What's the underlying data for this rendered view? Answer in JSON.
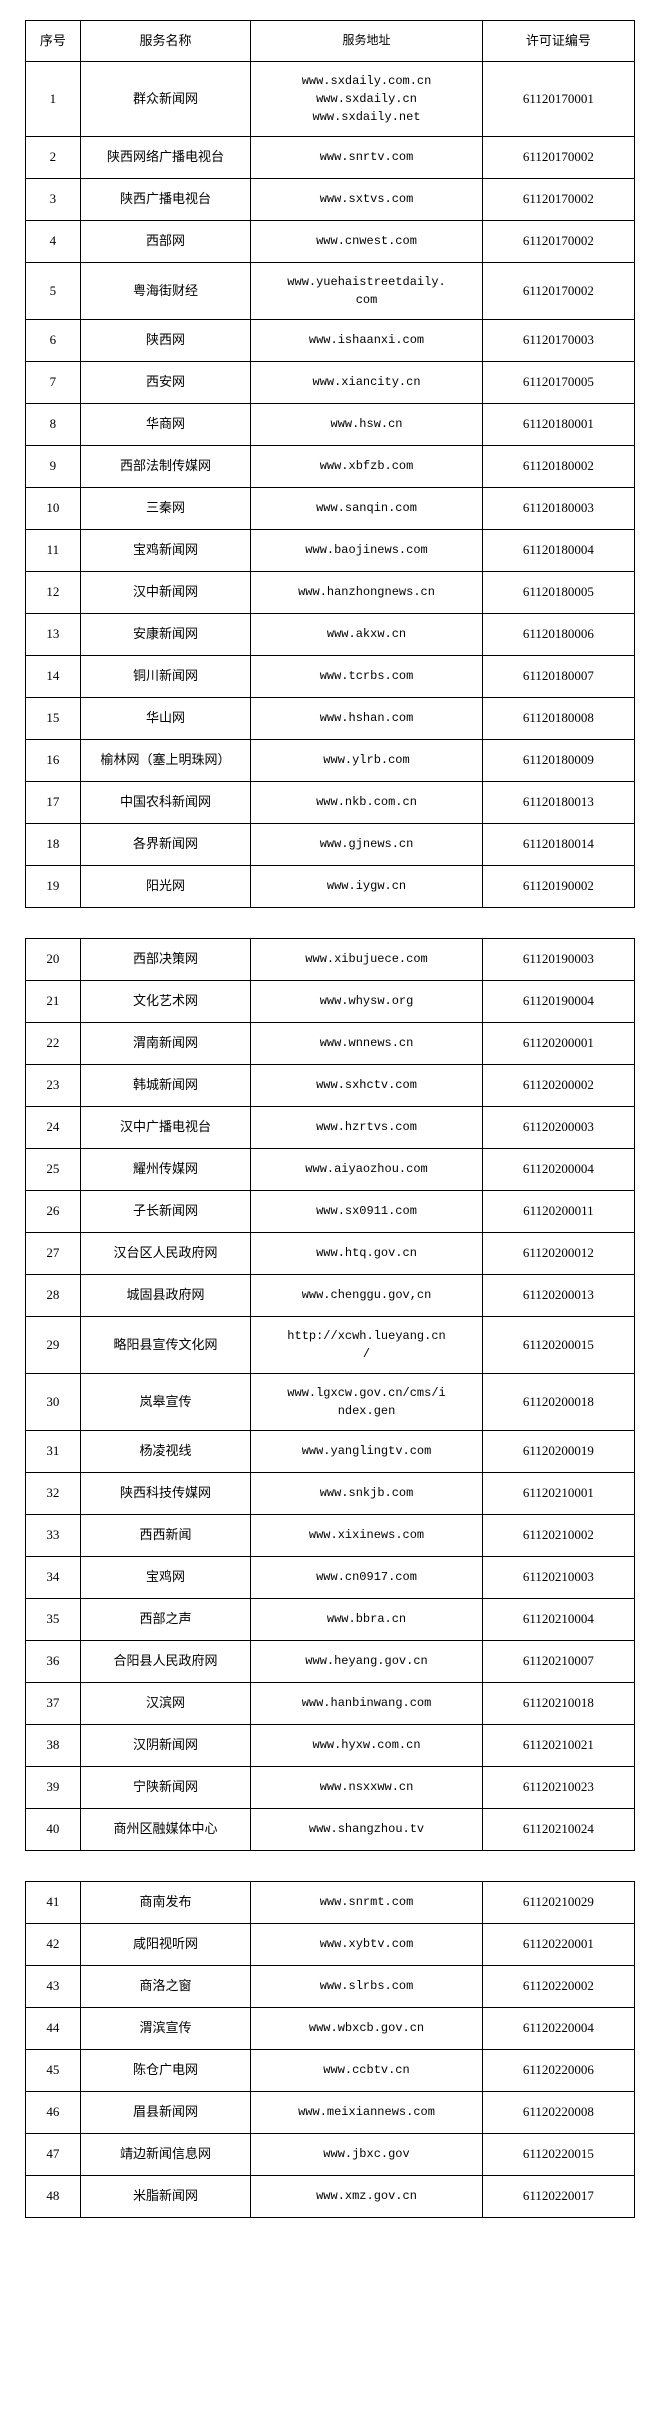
{
  "headers": {
    "seq": "序号",
    "name": "服务名称",
    "addr": "服务地址",
    "license": "许可证编号"
  },
  "groups": [
    {
      "rows": [
        {
          "seq": "1",
          "name": "群众新闻网",
          "addr": [
            "www.sxdaily.com.cn",
            "www.sxdaily.cn",
            "www.sxdaily.net"
          ],
          "license": "61120170001"
        },
        {
          "seq": "2",
          "name": "陕西网络广播电视台",
          "addr": [
            "www.snrtv.com"
          ],
          "license": "61120170002"
        },
        {
          "seq": "3",
          "name": "陕西广播电视台",
          "addr": [
            "www.sxtvs.com"
          ],
          "license": "61120170002"
        },
        {
          "seq": "4",
          "name": "西部网",
          "addr": [
            "www.cnwest.com"
          ],
          "license": "61120170002"
        },
        {
          "seq": "5",
          "name": "粤海街财经",
          "addr": [
            "www.yuehaistreetdaily.",
            "com"
          ],
          "license": "61120170002"
        },
        {
          "seq": "6",
          "name": "陕西网",
          "addr": [
            "www.ishaanxi.com"
          ],
          "license": "61120170003"
        },
        {
          "seq": "7",
          "name": "西安网",
          "addr": [
            "www.xiancity.cn"
          ],
          "license": "61120170005"
        },
        {
          "seq": "8",
          "name": "华商网",
          "addr": [
            "www.hsw.cn"
          ],
          "license": "61120180001"
        },
        {
          "seq": "9",
          "name": "西部法制传媒网",
          "addr": [
            "www.xbfzb.com"
          ],
          "license": "61120180002"
        },
        {
          "seq": "10",
          "name": "三秦网",
          "addr": [
            "www.sanqin.com"
          ],
          "license": "61120180003"
        },
        {
          "seq": "11",
          "name": "宝鸡新闻网",
          "addr": [
            "www.baojinews.com"
          ],
          "license": "61120180004"
        },
        {
          "seq": "12",
          "name": "汉中新闻网",
          "addr": [
            "www.hanzhongnews.cn"
          ],
          "license": "61120180005"
        },
        {
          "seq": "13",
          "name": "安康新闻网",
          "addr": [
            "www.akxw.cn"
          ],
          "license": "61120180006"
        },
        {
          "seq": "14",
          "name": "铜川新闻网",
          "addr": [
            "www.tcrbs.com"
          ],
          "license": "61120180007"
        },
        {
          "seq": "15",
          "name": "华山网",
          "addr": [
            "www.hshan.com"
          ],
          "license": "61120180008"
        },
        {
          "seq": "16",
          "name": "榆林网（塞上明珠网）",
          "addr": [
            "www.ylrb.com"
          ],
          "license": "61120180009"
        },
        {
          "seq": "17",
          "name": "中国农科新闻网",
          "addr": [
            "www.nkb.com.cn"
          ],
          "license": "61120180013"
        },
        {
          "seq": "18",
          "name": "各界新闻网",
          "addr": [
            "www.gjnews.cn"
          ],
          "license": "61120180014"
        },
        {
          "seq": "19",
          "name": "阳光网",
          "addr": [
            "www.iygw.cn"
          ],
          "license": "61120190002"
        }
      ]
    },
    {
      "rows": [
        {
          "seq": "20",
          "name": "西部决策网",
          "addr": [
            "www.xibujuece.com"
          ],
          "license": "61120190003"
        },
        {
          "seq": "21",
          "name": "文化艺术网",
          "addr": [
            "www.whysw.org"
          ],
          "license": "61120190004"
        },
        {
          "seq": "22",
          "name": "渭南新闻网",
          "addr": [
            "www.wnnews.cn"
          ],
          "license": "61120200001"
        },
        {
          "seq": "23",
          "name": "韩城新闻网",
          "addr": [
            "www.sxhctv.com"
          ],
          "license": "61120200002"
        },
        {
          "seq": "24",
          "name": "汉中广播电视台",
          "addr": [
            "www.hzrtvs.com"
          ],
          "license": "61120200003"
        },
        {
          "seq": "25",
          "name": "耀州传媒网",
          "addr": [
            "www.aiyaozhou.com"
          ],
          "license": "61120200004"
        },
        {
          "seq": "26",
          "name": "子长新闻网",
          "addr": [
            "www.sx0911.com"
          ],
          "license": "61120200011"
        },
        {
          "seq": "27",
          "name": "汉台区人民政府网",
          "addr": [
            "www.htq.gov.cn"
          ],
          "license": "61120200012"
        },
        {
          "seq": "28",
          "name": "城固县政府网",
          "addr": [
            "www.chenggu.gov,cn"
          ],
          "license": "61120200013"
        },
        {
          "seq": "29",
          "name": "略阳县宣传文化网",
          "addr": [
            "http://xcwh.lueyang.cn",
            "/"
          ],
          "license": "61120200015"
        },
        {
          "seq": "30",
          "name": "岚皋宣传",
          "addr": [
            "www.lgxcw.gov.cn/cms/i",
            "ndex.gen"
          ],
          "license": "61120200018"
        },
        {
          "seq": "31",
          "name": "杨凌视线",
          "addr": [
            "www.yanglingtv.com"
          ],
          "license": "61120200019"
        },
        {
          "seq": "32",
          "name": "陕西科技传媒网",
          "addr": [
            "www.snkjb.com"
          ],
          "license": "61120210001"
        },
        {
          "seq": "33",
          "name": "西西新闻",
          "addr": [
            "www.xixinews.com"
          ],
          "license": "61120210002"
        },
        {
          "seq": "34",
          "name": "宝鸡网",
          "addr": [
            "www.cn0917.com"
          ],
          "license": "61120210003"
        },
        {
          "seq": "35",
          "name": "西部之声",
          "addr": [
            "www.bbra.cn"
          ],
          "license": "61120210004"
        },
        {
          "seq": "36",
          "name": "合阳县人民政府网",
          "addr": [
            "www.heyang.gov.cn"
          ],
          "license": "61120210007"
        },
        {
          "seq": "37",
          "name": "汉滨网",
          "addr": [
            "www.hanbinwang.com"
          ],
          "license": "61120210018"
        },
        {
          "seq": "38",
          "name": "汉阴新闻网",
          "addr": [
            "www.hyxw.com.cn"
          ],
          "license": "61120210021"
        },
        {
          "seq": "39",
          "name": "宁陕新闻网",
          "addr": [
            "www.nsxxww.cn"
          ],
          "license": "61120210023"
        },
        {
          "seq": "40",
          "name": "商州区融媒体中心",
          "addr": [
            "www.shangzhou.tv"
          ],
          "license": "61120210024"
        }
      ]
    },
    {
      "rows": [
        {
          "seq": "41",
          "name": "商南发布",
          "addr": [
            "www.snrmt.com"
          ],
          "license": "61120210029"
        },
        {
          "seq": "42",
          "name": "咸阳视听网",
          "addr": [
            "www.xybtv.com"
          ],
          "license": "61120220001"
        },
        {
          "seq": "43",
          "name": "商洛之窗",
          "addr": [
            "www.slrbs.com"
          ],
          "license": "61120220002"
        },
        {
          "seq": "44",
          "name": "渭滨宣传",
          "addr": [
            "www.wbxcb.gov.cn"
          ],
          "license": "61120220004"
        },
        {
          "seq": "45",
          "name": "陈仓广电网",
          "addr": [
            "www.ccbtv.cn"
          ],
          "license": "61120220006"
        },
        {
          "seq": "46",
          "name": "眉县新闻网",
          "addr": [
            "www.meixiannews.com"
          ],
          "license": "61120220008"
        },
        {
          "seq": "47",
          "name": "靖边新闻信息网",
          "addr": [
            "www.jbxc.gov"
          ],
          "license": "61120220015"
        },
        {
          "seq": "48",
          "name": "米脂新闻网",
          "addr": [
            "www.xmz.gov.cn"
          ],
          "license": "61120220017"
        }
      ]
    }
  ]
}
